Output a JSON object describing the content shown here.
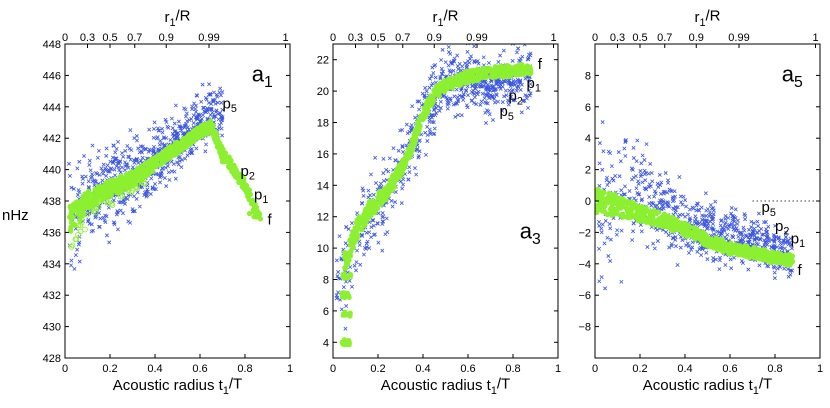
{
  "chart_data": [
    {
      "type": "scatter",
      "panel_label": "a",
      "panel_sub": "1",
      "ylabel": "nHz",
      "xlabel_main": "Acoustic radius t",
      "xlabel_sub": "1",
      "xlabel_tail": "/T",
      "toplabel_main": "r",
      "toplabel_sub": "1",
      "toplabel_tail": "/R",
      "xlim": [
        0,
        1
      ],
      "ylim": [
        428,
        448
      ],
      "xticks": [
        0,
        0.2,
        0.4,
        0.6,
        0.8,
        1
      ],
      "xtick_labels": [
        "0",
        "0.2",
        "0.4",
        "0.6",
        "0.8",
        "1"
      ],
      "yticks": [
        428,
        430,
        432,
        434,
        436,
        438,
        440,
        442,
        444,
        446,
        448
      ],
      "ytick_labels": [
        "428",
        "430",
        "432",
        "434",
        "436",
        "438",
        "440",
        "442",
        "444",
        "446",
        "448"
      ],
      "top_tick_pos": [
        0,
        0.1,
        0.2,
        0.31,
        0.45,
        0.64,
        0.98
      ],
      "top_tick_labels": [
        "0",
        "0.3",
        "0.5",
        "0.7",
        "0.9",
        "0.99",
        "1"
      ],
      "series": [
        {
          "name": "blue crosses",
          "color": "#3a55e0",
          "marker": "x",
          "trend_x": [
            0.02,
            0.1,
            0.2,
            0.3,
            0.4,
            0.5,
            0.6,
            0.66,
            0.7
          ],
          "trend_y": [
            437.0,
            438.2,
            439.0,
            439.6,
            440.6,
            441.8,
            443.0,
            443.6,
            443.4
          ],
          "scatter_near_origin": 3.2,
          "scatter_far": 1.3
        },
        {
          "name": "green circles",
          "color": "#8cf030",
          "marker": "o",
          "trend_x": [
            0.02,
            0.1,
            0.2,
            0.3,
            0.4,
            0.5,
            0.6,
            0.65,
            0.7,
            0.75,
            0.8,
            0.85,
            0.87
          ],
          "trend_y": [
            436.8,
            438.0,
            438.8,
            439.4,
            440.4,
            441.4,
            442.4,
            442.8,
            441.0,
            440.0,
            439.0,
            437.3,
            436.9
          ]
        }
      ],
      "annotations": [
        {
          "main": "p",
          "sub": "5",
          "x": 0.7,
          "y": 443.9
        },
        {
          "main": "p",
          "sub": "2",
          "x": 0.78,
          "y": 439.6
        },
        {
          "main": "p",
          "sub": "1",
          "x": 0.84,
          "y": 438.1
        },
        {
          "main": "f",
          "x": 0.9,
          "y": 436.5
        }
      ]
    },
    {
      "type": "scatter",
      "panel_label": "a",
      "panel_sub": "3",
      "xlabel_main": "Acoustic radius t",
      "xlabel_sub": "1",
      "xlabel_tail": "/T",
      "toplabel_main": "r",
      "toplabel_sub": "1",
      "toplabel_tail": "/R",
      "xlim": [
        0,
        1
      ],
      "ylim": [
        3,
        23
      ],
      "xticks": [
        0,
        0.2,
        0.4,
        0.6,
        0.8,
        1
      ],
      "xtick_labels": [
        "0",
        "0.2",
        "0.4",
        "0.6",
        "0.8",
        "1"
      ],
      "yticks": [
        4,
        6,
        8,
        10,
        12,
        14,
        16,
        18,
        20,
        22
      ],
      "ytick_labels": [
        "4",
        "6",
        "8",
        "10",
        "12",
        "14",
        "16",
        "18",
        "20",
        "22"
      ],
      "top_tick_pos": [
        0,
        0.1,
        0.2,
        0.31,
        0.45,
        0.64,
        0.98
      ],
      "top_tick_labels": [
        "0",
        "0.3",
        "0.5",
        "0.7",
        "0.9",
        "0.99",
        "1"
      ],
      "series": [
        {
          "name": "blue crosses",
          "color": "#3a55e0",
          "marker": "x",
          "trend_x": [
            0.05,
            0.1,
            0.2,
            0.3,
            0.4,
            0.5,
            0.6,
            0.7,
            0.8,
            0.88
          ],
          "trend_y": [
            8.5,
            10.5,
            12.5,
            14.8,
            18.5,
            20.5,
            20.8,
            20.2,
            20.8,
            21.2
          ],
          "scatter_near_origin": 2.8,
          "scatter_far": 1.3
        },
        {
          "name": "green circles",
          "color": "#8cf030",
          "marker": "o",
          "trend_x": [
            0.05,
            0.1,
            0.15,
            0.2,
            0.25,
            0.3,
            0.35,
            0.4,
            0.45,
            0.5,
            0.6,
            0.7,
            0.8,
            0.88
          ],
          "trend_y": [
            9.0,
            11.0,
            12.2,
            13.0,
            13.8,
            15.0,
            16.5,
            18.5,
            19.8,
            20.4,
            20.9,
            21.2,
            21.3,
            21.4
          ]
        }
      ],
      "low_clusters_y": [
        4,
        5.8,
        7,
        8.2
      ],
      "annotations": [
        {
          "main": "f",
          "x": 0.91,
          "y": 21.4
        },
        {
          "main": "p",
          "sub": "1",
          "x": 0.86,
          "y": 20.2
        },
        {
          "main": "p",
          "sub": "2",
          "x": 0.78,
          "y": 19.4
        },
        {
          "main": "p",
          "sub": "5",
          "x": 0.74,
          "y": 18.4
        }
      ]
    },
    {
      "type": "scatter",
      "panel_label": "a",
      "panel_sub": "5",
      "xlabel_main": "Acoustic radius t",
      "xlabel_sub": "1",
      "xlabel_tail": "/T",
      "toplabel_main": "r",
      "toplabel_sub": "1",
      "toplabel_tail": "/R",
      "xlim": [
        0,
        1
      ],
      "ylim": [
        -10,
        10
      ],
      "xticks": [
        0,
        0.2,
        0.4,
        0.6,
        0.8,
        1
      ],
      "xtick_labels": [
        "0",
        "0.2",
        "0.4",
        "0.6",
        "0.8",
        "1"
      ],
      "yticks": [
        -8,
        -6,
        -4,
        -2,
        0,
        2,
        4,
        6,
        8
      ],
      "ytick_labels": [
        "−8",
        "−6",
        "−4",
        "−2",
        "0",
        "2",
        "4",
        "6",
        "8"
      ],
      "top_tick_pos": [
        0,
        0.1,
        0.2,
        0.31,
        0.45,
        0.64,
        0.98
      ],
      "top_tick_labels": [
        "0",
        "0.3",
        "0.5",
        "0.7",
        "0.9",
        "0.99",
        "1"
      ],
      "zero_line": 0,
      "series": [
        {
          "name": "blue crosses",
          "color": "#3a55e0",
          "marker": "x",
          "trend_x": [
            0.02,
            0.1,
            0.2,
            0.3,
            0.4,
            0.5,
            0.6,
            0.7,
            0.8,
            0.88
          ],
          "trend_y": [
            0,
            0.5,
            0.5,
            -0.5,
            -1.5,
            -2.0,
            -2.3,
            -2.5,
            -3.0,
            -3.6
          ],
          "scatter_near_origin": 4.5,
          "scatter_far": 1.0
        },
        {
          "name": "green circles",
          "color": "#8cf030",
          "marker": "o",
          "trend_x": [
            0.0,
            0.1,
            0.2,
            0.3,
            0.4,
            0.5,
            0.6,
            0.7,
            0.8,
            0.88
          ],
          "trend_y": [
            0,
            -0.3,
            -0.8,
            -1.2,
            -1.8,
            -2.5,
            -3.0,
            -3.3,
            -3.6,
            -3.8
          ]
        }
      ],
      "annotations": [
        {
          "main": "p",
          "sub": "5",
          "x": 0.74,
          "y": -0.7
        },
        {
          "main": "p",
          "sub": "2",
          "x": 0.8,
          "y": -1.9
        },
        {
          "main": "p",
          "sub": "1",
          "x": 0.87,
          "y": -2.7
        },
        {
          "main": "f",
          "x": 0.9,
          "y": -4.7
        }
      ]
    }
  ]
}
